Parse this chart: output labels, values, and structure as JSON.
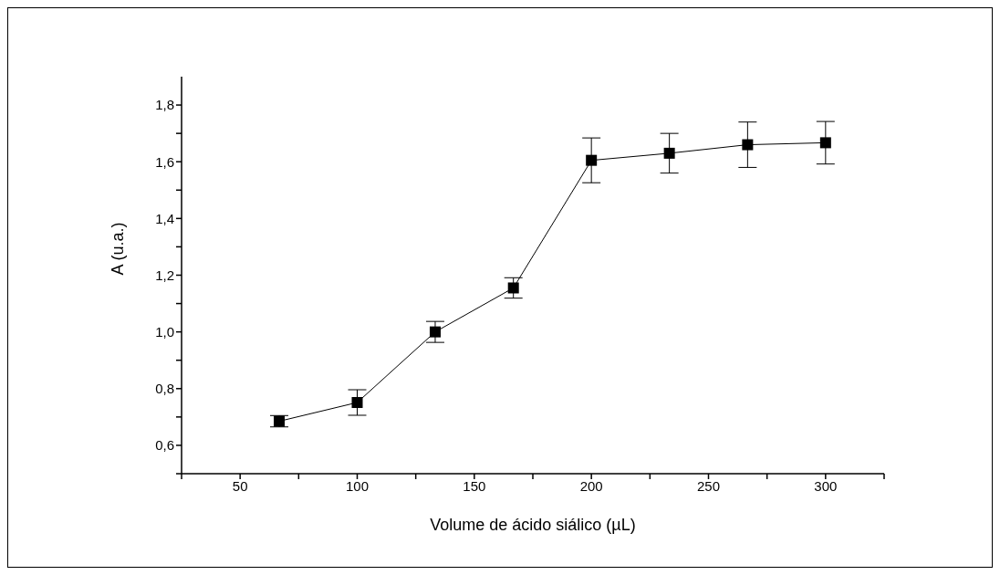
{
  "chart_data": {
    "type": "line",
    "xlabel": "Volume de ácido siálico (µL)",
    "ylabel": "A (u.a.)",
    "x": [
      66.7,
      100,
      133.3,
      166.7,
      200,
      233.3,
      266.7,
      300
    ],
    "series": [
      {
        "color": "#000000",
        "values": [
          0.685,
          0.751,
          1.0,
          1.155,
          1.605,
          1.63,
          1.66,
          1.667
        ],
        "errors": [
          0.02,
          0.045,
          0.037,
          0.036,
          0.079,
          0.07,
          0.08,
          0.075
        ]
      }
    ],
    "xlim": [
      25,
      325
    ],
    "xticks": [
      {
        "value": 25,
        "label": null
      },
      50,
      {
        "value": 75,
        "label": null
      },
      100,
      {
        "value": 125,
        "label": null
      },
      150,
      {
        "value": 175,
        "label": null
      },
      200,
      {
        "value": 225,
        "label": null
      },
      250,
      {
        "value": 275,
        "label": null
      },
      300,
      {
        "value": 325,
        "label": null
      }
    ],
    "ylim": [
      0.5,
      1.9
    ],
    "yticks": [
      {
        "value": 0.5,
        "label": null
      },
      {
        "value": 0.6,
        "label": "0,6"
      },
      {
        "value": 0.7,
        "label": null
      },
      {
        "value": 0.8,
        "label": "0,8"
      },
      {
        "value": 0.9,
        "label": null
      },
      {
        "value": 1.0,
        "label": "1,0"
      },
      {
        "value": 1.1,
        "label": null
      },
      {
        "value": 1.2,
        "label": "1,2"
      },
      {
        "value": 1.3,
        "label": null
      },
      {
        "value": 1.4,
        "label": "1,4"
      },
      {
        "value": 1.5,
        "label": null
      },
      {
        "value": 1.6,
        "label": "1,6"
      },
      {
        "value": 1.7,
        "label": null
      },
      {
        "value": 1.8,
        "label": "1,8"
      }
    ],
    "grid": false,
    "legend": false,
    "marker": "square",
    "line_style": "solid"
  }
}
